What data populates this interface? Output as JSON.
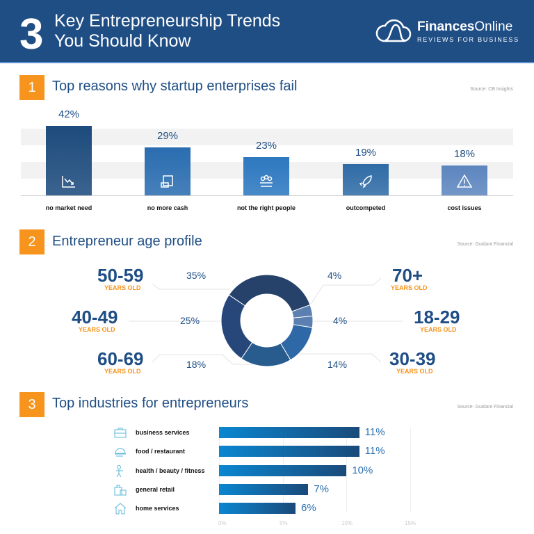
{
  "header": {
    "number": "3",
    "title_line1": "Key Entrepreneurship Trends",
    "title_line2": "You Should Know",
    "brand_bold": "Finances",
    "brand_light": "Online",
    "brand_tagline": "REVIEWS FOR BUSINESS"
  },
  "sections": [
    {
      "number": "1",
      "title": "Top reasons why startup enterprises fail",
      "source": "Source: CB Insights"
    },
    {
      "number": "2",
      "title": "Entrepreneur age profile",
      "source": "Source: Guidant Financial"
    },
    {
      "number": "3",
      "title": "Top industries for entrepreneurs",
      "source": "Source: Guidant Financial"
    }
  ],
  "chart_data": [
    {
      "type": "bar",
      "title": "Top reasons why startup enterprises fail",
      "categories": [
        "no market need",
        "no more cash",
        "not the right people",
        "outcompeted",
        "cost issues"
      ],
      "values": [
        42,
        29,
        23,
        19,
        18
      ],
      "labels": [
        "42%",
        "29%",
        "23%",
        "19%",
        "18%"
      ],
      "icons": [
        "declining-chart-icon",
        "cash-icon",
        "people-icon",
        "rocket-icon",
        "warning-icon"
      ],
      "colors": [
        "#1d4b7d",
        "#2a6db0",
        "#2d78c0",
        "#2f6ca6",
        "#5d86bf"
      ]
    },
    {
      "type": "pie",
      "title": "Entrepreneur age profile",
      "categories": [
        "70+",
        "18-29",
        "30-39",
        "60-69",
        "40-49",
        "50-59"
      ],
      "values": [
        4,
        4,
        14,
        18,
        25,
        35
      ],
      "labels": [
        "4%",
        "4%",
        "14%",
        "18%",
        "25%",
        "35%"
      ],
      "sublabel": "YEARS OLD",
      "colors": [
        "#5b7fb0",
        "#5b7fb0",
        "#2f68a6",
        "#285c8e",
        "#27477a",
        "#26426a"
      ]
    },
    {
      "type": "bar",
      "orientation": "horizontal",
      "title": "Top industries for entrepreneurs",
      "categories": [
        "business services",
        "food / restaurant",
        "health / beauty / fitness",
        "general retail",
        "home services"
      ],
      "values": [
        11,
        11,
        10,
        7,
        6
      ],
      "labels": [
        "11%",
        "11%",
        "10%",
        "7%",
        "6%"
      ],
      "xticks": [
        "0%",
        "5%",
        "10%",
        "15%"
      ],
      "xlim": [
        0,
        15
      ],
      "icons": [
        "briefcase-icon",
        "food-cloche-icon",
        "fitness-person-icon",
        "shopping-bags-icon",
        "house-icon"
      ]
    }
  ]
}
